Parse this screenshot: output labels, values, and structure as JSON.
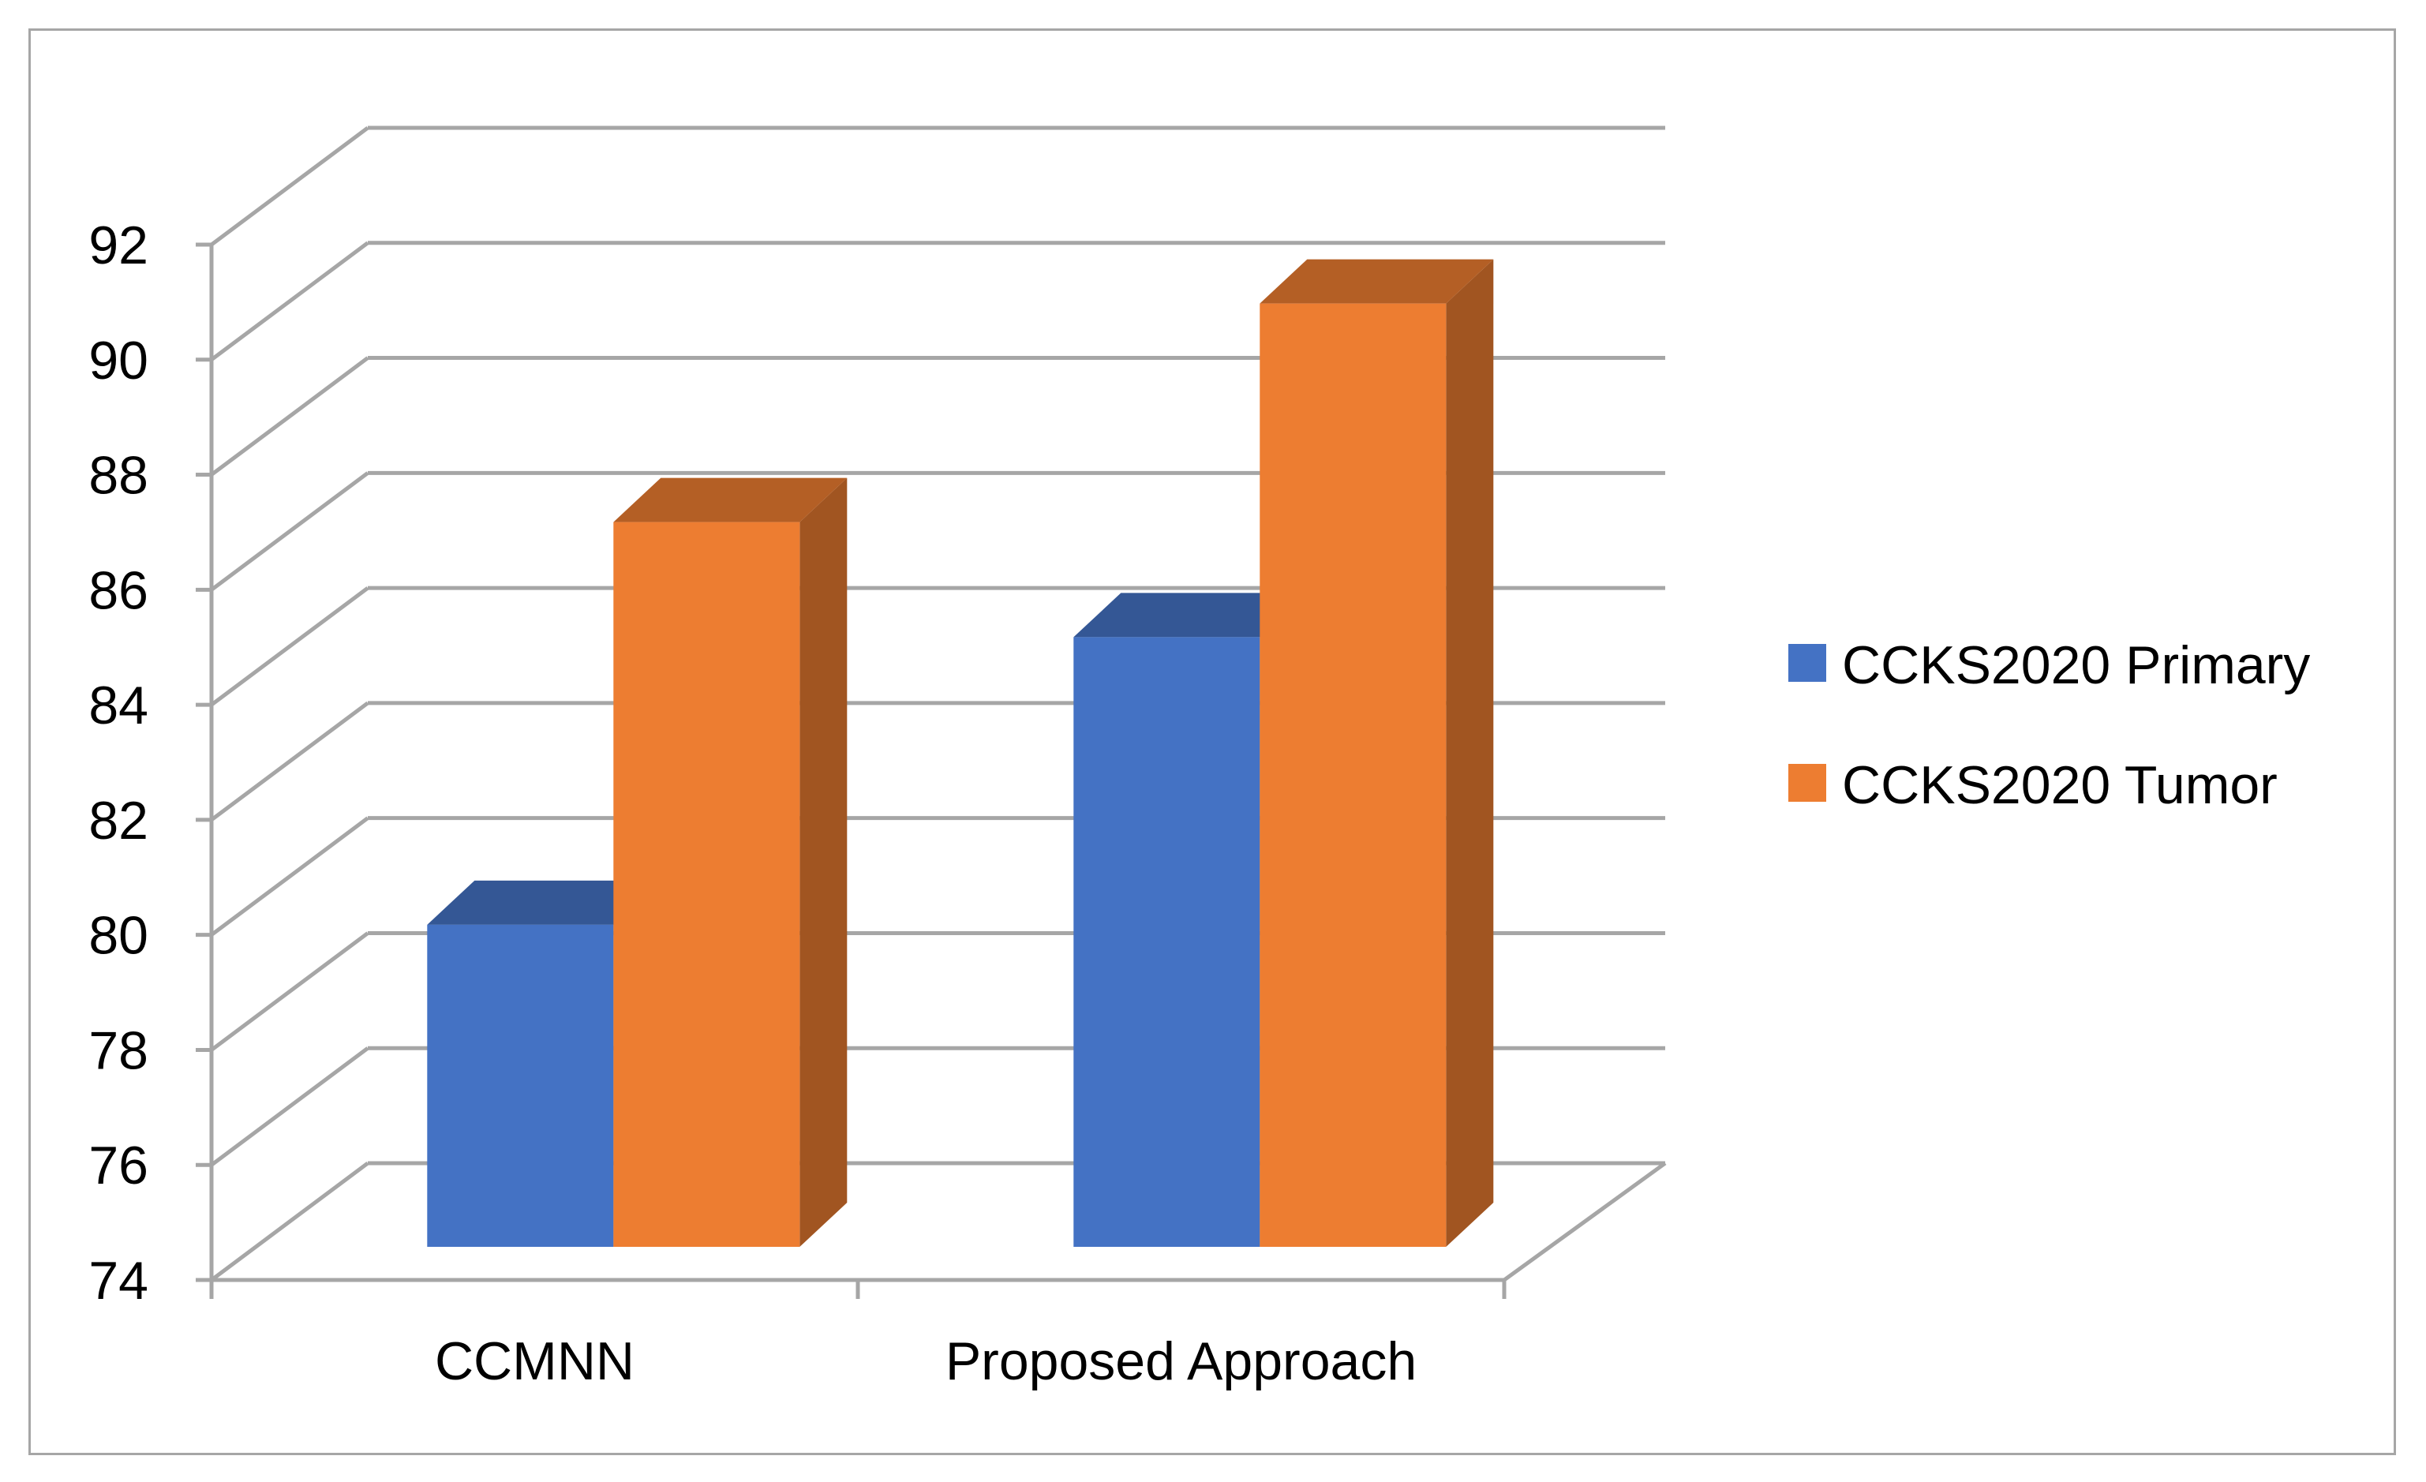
{
  "chart_data": {
    "type": "bar",
    "style": "3d-clustered-column",
    "title": "",
    "xlabel": "",
    "ylabel": "",
    "categories": [
      "CCMNN",
      "Proposed Approach"
    ],
    "series": [
      {
        "name": "CCKS2020 Primary",
        "values": [
          79.6,
          84.6
        ],
        "color": "#4472c4"
      },
      {
        "name": "CCKS2020 Tumor",
        "values": [
          86.6,
          90.4
        ],
        "color": "#ed7d31"
      }
    ],
    "ylim": [
      74,
      92
    ],
    "yticks": [
      74,
      76,
      78,
      80,
      82,
      84,
      86,
      88,
      90,
      92
    ],
    "grid": true,
    "legend": "right",
    "colors": {
      "grid": "#a6a6a6",
      "frame": "#a6a6a6"
    }
  }
}
